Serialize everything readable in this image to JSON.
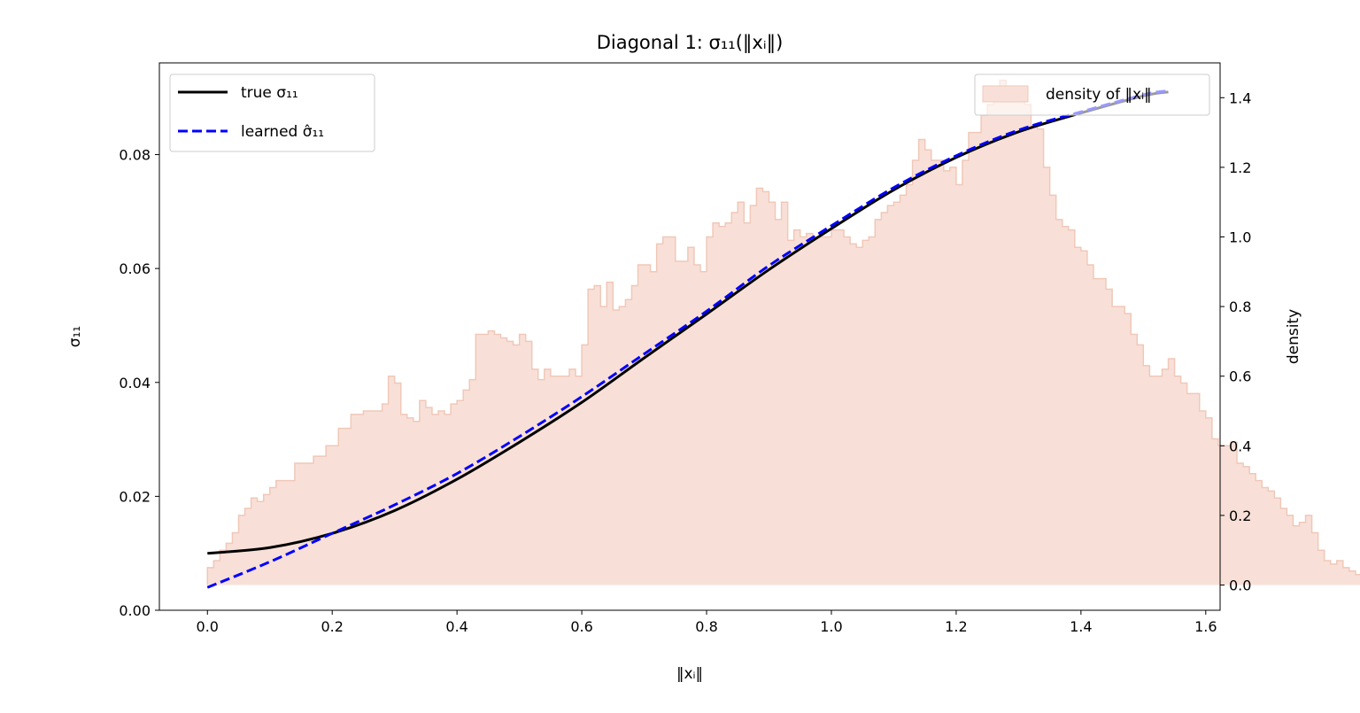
{
  "chart_data": {
    "type": "line",
    "title": "Diagonal 1: σ₁₁(‖xᵢ‖)",
    "xlabel": "‖xᵢ‖",
    "ylabel": "σ₁₁",
    "ylabel_right": "density",
    "xlim": [
      -0.077,
      1.623
    ],
    "ylim": [
      0.0,
      0.0961
    ],
    "ylim_right": [
      -0.0725,
      1.5
    ],
    "x_ticks": [
      0.0,
      0.2,
      0.4,
      0.6,
      0.8,
      1.0,
      1.2,
      1.4,
      1.6
    ],
    "x_tick_labels": [
      "0.0",
      "0.2",
      "0.4",
      "0.6",
      "0.8",
      "1.0",
      "1.2",
      "1.4",
      "1.6"
    ],
    "y_ticks": [
      0.0,
      0.02,
      0.04,
      0.06,
      0.08
    ],
    "y_tick_labels": [
      "0.00",
      "0.02",
      "0.04",
      "0.06",
      "0.08"
    ],
    "y2_ticks": [
      0.0,
      0.2,
      0.4,
      0.6,
      0.8,
      1.0,
      1.2,
      1.4
    ],
    "y2_tick_labels": [
      "0.0",
      "0.2",
      "0.4",
      "0.6",
      "0.8",
      "1.0",
      "1.2",
      "1.4"
    ],
    "grid": false,
    "legend_left": "upper-left",
    "legend_right": "upper-right",
    "series": [
      {
        "name": "true σ₁₁",
        "color": "#000000",
        "style": "solid",
        "x": [
          0.0,
          0.1,
          0.2,
          0.3,
          0.4,
          0.5,
          0.6,
          0.7,
          0.8,
          0.9,
          1.0,
          1.1,
          1.2,
          1.3,
          1.4,
          1.5,
          1.54
        ],
        "y": [
          0.01,
          0.011,
          0.0135,
          0.0175,
          0.023,
          0.0295,
          0.0365,
          0.0443,
          0.052,
          0.0598,
          0.067,
          0.0738,
          0.0795,
          0.084,
          0.0873,
          0.0903,
          0.091
        ]
      },
      {
        "name": "learned σ̂₁₁",
        "color": "#0000ff",
        "style": "dashed",
        "x": [
          0.0,
          0.1,
          0.2,
          0.3,
          0.4,
          0.5,
          0.6,
          0.7,
          0.8,
          0.9,
          1.0,
          1.1,
          1.2,
          1.3,
          1.4,
          1.5,
          1.54
        ],
        "y": [
          0.004,
          0.0085,
          0.0135,
          0.0185,
          0.024,
          0.0305,
          0.0375,
          0.045,
          0.0525,
          0.0605,
          0.0675,
          0.0742,
          0.0798,
          0.0843,
          0.0875,
          0.0905,
          0.0912
        ]
      }
    ],
    "histogram": {
      "name": "density of ‖xᵢ‖",
      "fill": "#f8e0d8",
      "edge": "#f0c8b8",
      "bin_start": 0.0,
      "bin_width": 0.01,
      "values": [
        0.05,
        0.07,
        0.1,
        0.12,
        0.15,
        0.2,
        0.22,
        0.25,
        0.24,
        0.26,
        0.28,
        0.3,
        0.3,
        0.3,
        0.35,
        0.35,
        0.35,
        0.37,
        0.37,
        0.4,
        0.4,
        0.45,
        0.45,
        0.49,
        0.49,
        0.5,
        0.5,
        0.5,
        0.52,
        0.6,
        0.58,
        0.49,
        0.48,
        0.47,
        0.53,
        0.51,
        0.49,
        0.5,
        0.49,
        0.52,
        0.53,
        0.56,
        0.59,
        0.72,
        0.72,
        0.73,
        0.72,
        0.71,
        0.7,
        0.69,
        0.72,
        0.7,
        0.62,
        0.59,
        0.62,
        0.6,
        0.6,
        0.6,
        0.62,
        0.6,
        0.69,
        0.85,
        0.86,
        0.8,
        0.87,
        0.79,
        0.8,
        0.82,
        0.86,
        0.92,
        0.92,
        0.9,
        0.98,
        1.0,
        1.0,
        0.93,
        0.93,
        0.97,
        0.92,
        0.9,
        1.0,
        1.04,
        1.03,
        1.04,
        1.07,
        1.1,
        1.04,
        1.09,
        1.14,
        1.13,
        1.1,
        1.05,
        1.1,
        0.99,
        1.02,
        1.0,
        1.01,
        1.0,
        1.0,
        1.0,
        1.02,
        1.02,
        1.0,
        0.98,
        0.97,
        0.99,
        1.0,
        1.05,
        1.07,
        1.09,
        1.1,
        1.12,
        1.15,
        1.22,
        1.28,
        1.25,
        1.22,
        1.22,
        1.19,
        1.2,
        1.15,
        1.22,
        1.3,
        1.3,
        1.35,
        1.38,
        1.43,
        1.45,
        1.43,
        1.42,
        1.39,
        1.38,
        1.32,
        1.31,
        1.2,
        1.12,
        1.05,
        1.03,
        1.02,
        0.97,
        0.96,
        0.92,
        0.88,
        0.88,
        0.85,
        0.8,
        0.8,
        0.78,
        0.72,
        0.69,
        0.63,
        0.6,
        0.6,
        0.62,
        0.65,
        0.6,
        0.58,
        0.55,
        0.55,
        0.5,
        0.48,
        0.42,
        0.4,
        0.4,
        0.41,
        0.35,
        0.34,
        0.32,
        0.3,
        0.28,
        0.27,
        0.25,
        0.22,
        0.2,
        0.17,
        0.18,
        0.2,
        0.15,
        0.1,
        0.07,
        0.06,
        0.07,
        0.05,
        0.04,
        0.03,
        0.02,
        0.03,
        0.01,
        0.01,
        0.01,
        0.01,
        0.01,
        0.01,
        0.0,
        0.0,
        0.0,
        0.0,
        0.0,
        0.0,
        0.0
      ]
    }
  }
}
